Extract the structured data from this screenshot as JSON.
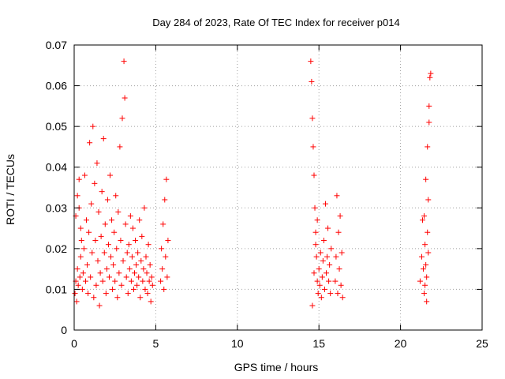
{
  "chart_data": {
    "type": "scatter",
    "title": "Day 284 of 2023, Rate Of TEC Index for receiver p014",
    "xlabel": "GPS time / hours",
    "ylabel": "ROTI / TECUs",
    "xlim": [
      0,
      25
    ],
    "ylim": [
      0,
      0.07
    ],
    "xticks": [
      0,
      5,
      10,
      15,
      20,
      25
    ],
    "xtick_labels": [
      "0",
      "5",
      "10",
      "15",
      "20",
      "25"
    ],
    "yticks": [
      0,
      0.01,
      0.02,
      0.03,
      0.04,
      0.05,
      0.06,
      0.07
    ],
    "ytick_labels": [
      "0",
      "0.01",
      "0.02",
      "0.03",
      "0.04",
      "0.05",
      "0.06",
      "0.07"
    ],
    "grid": true,
    "marker": "+",
    "color": "#ff0000",
    "series": [
      {
        "points": [
          [
            0.05,
            0.009
          ],
          [
            0.1,
            0.012
          ],
          [
            0.15,
            0.007
          ],
          [
            0.2,
            0.015
          ],
          [
            0.25,
            0.011
          ],
          [
            0.3,
            0.03
          ],
          [
            0.35,
            0.013
          ],
          [
            0.4,
            0.018
          ],
          [
            0.45,
            0.022
          ],
          [
            0.5,
            0.01
          ],
          [
            0.1,
            0.028
          ],
          [
            0.2,
            0.033
          ],
          [
            0.3,
            0.037
          ],
          [
            0.4,
            0.025
          ],
          [
            0.55,
            0.014
          ],
          [
            0.6,
            0.02
          ],
          [
            0.65,
            0.038
          ],
          [
            0.7,
            0.012
          ],
          [
            0.75,
            0.027
          ],
          [
            0.8,
            0.016
          ],
          [
            0.85,
            0.009
          ],
          [
            0.9,
            0.024
          ],
          [
            0.95,
            0.046
          ],
          [
            1.0,
            0.013
          ],
          [
            1.05,
            0.031
          ],
          [
            1.1,
            0.019
          ],
          [
            1.15,
            0.05
          ],
          [
            1.2,
            0.008
          ],
          [
            1.25,
            0.036
          ],
          [
            1.3,
            0.022
          ],
          [
            1.35,
            0.011
          ],
          [
            1.4,
            0.041
          ],
          [
            1.45,
            0.017
          ],
          [
            1.5,
            0.029
          ],
          [
            1.55,
            0.006
          ],
          [
            1.6,
            0.014
          ],
          [
            1.65,
            0.023
          ],
          [
            1.7,
            0.034
          ],
          [
            1.75,
            0.012
          ],
          [
            1.8,
            0.047
          ],
          [
            1.85,
            0.019
          ],
          [
            1.9,
            0.026
          ],
          [
            1.95,
            0.009
          ],
          [
            2.0,
            0.015
          ],
          [
            2.05,
            0.032
          ],
          [
            2.1,
            0.021
          ],
          [
            2.15,
            0.013
          ],
          [
            2.2,
            0.038
          ],
          [
            2.25,
            0.018
          ],
          [
            2.3,
            0.027
          ],
          [
            2.35,
            0.01
          ],
          [
            2.4,
            0.016
          ],
          [
            2.45,
            0.024
          ],
          [
            2.5,
            0.012
          ],
          [
            2.55,
            0.033
          ],
          [
            2.6,
            0.02
          ],
          [
            2.65,
            0.008
          ],
          [
            2.7,
            0.029
          ],
          [
            2.75,
            0.014
          ],
          [
            2.8,
            0.045
          ],
          [
            2.85,
            0.022
          ],
          [
            2.9,
            0.011
          ],
          [
            2.95,
            0.052
          ],
          [
            3.0,
            0.017
          ],
          [
            3.05,
            0.066
          ],
          [
            3.1,
            0.057
          ],
          [
            3.15,
            0.026
          ],
          [
            3.2,
            0.013
          ],
          [
            3.25,
            0.019
          ],
          [
            3.3,
            0.009
          ],
          [
            3.35,
            0.021
          ],
          [
            3.4,
            0.015
          ],
          [
            3.45,
            0.028
          ],
          [
            3.5,
            0.012
          ],
          [
            3.55,
            0.018
          ],
          [
            3.6,
            0.025
          ],
          [
            3.65,
            0.01
          ],
          [
            3.7,
            0.014
          ],
          [
            3.75,
            0.022
          ],
          [
            3.8,
            0.016
          ],
          [
            3.85,
            0.011
          ],
          [
            3.9,
            0.019
          ],
          [
            3.95,
            0.013
          ],
          [
            4.0,
            0.027
          ],
          [
            4.05,
            0.008
          ],
          [
            4.1,
            0.017
          ],
          [
            4.15,
            0.023
          ],
          [
            4.2,
            0.012
          ],
          [
            4.25,
            0.015
          ],
          [
            4.3,
            0.03
          ],
          [
            4.35,
            0.01
          ],
          [
            4.4,
            0.018
          ],
          [
            4.45,
            0.014
          ],
          [
            4.5,
            0.009
          ],
          [
            4.55,
            0.021
          ],
          [
            4.6,
            0.012
          ],
          [
            4.65,
            0.016
          ],
          [
            4.7,
            0.007
          ],
          [
            4.75,
            0.013
          ],
          [
            4.8,
            0.011
          ],
          [
            5.3,
            0.012
          ],
          [
            5.35,
            0.02
          ],
          [
            5.4,
            0.015
          ],
          [
            5.45,
            0.026
          ],
          [
            5.5,
            0.01
          ],
          [
            5.55,
            0.032
          ],
          [
            5.6,
            0.018
          ],
          [
            5.65,
            0.037
          ],
          [
            5.7,
            0.013
          ],
          [
            5.75,
            0.022
          ],
          [
            14.5,
            0.066
          ],
          [
            14.55,
            0.061
          ],
          [
            14.6,
            0.052
          ],
          [
            14.65,
            0.045
          ],
          [
            14.7,
            0.038
          ],
          [
            14.75,
            0.03
          ],
          [
            14.8,
            0.024
          ],
          [
            14.85,
            0.018
          ],
          [
            14.9,
            0.012
          ],
          [
            14.95,
            0.009
          ],
          [
            14.6,
            0.006
          ],
          [
            14.7,
            0.014
          ],
          [
            14.8,
            0.021
          ],
          [
            14.9,
            0.027
          ],
          [
            15.0,
            0.015
          ],
          [
            15.05,
            0.011
          ],
          [
            15.1,
            0.019
          ],
          [
            15.15,
            0.008
          ],
          [
            15.2,
            0.013
          ],
          [
            15.25,
            0.017
          ],
          [
            15.3,
            0.022
          ],
          [
            15.35,
            0.01
          ],
          [
            15.4,
            0.031
          ],
          [
            15.45,
            0.014
          ],
          [
            15.5,
            0.018
          ],
          [
            15.55,
            0.025
          ],
          [
            15.6,
            0.012
          ],
          [
            15.65,
            0.016
          ],
          [
            15.7,
            0.009
          ],
          [
            15.75,
            0.02
          ],
          [
            16.0,
            0.012
          ],
          [
            16.05,
            0.018
          ],
          [
            16.1,
            0.033
          ],
          [
            16.15,
            0.009
          ],
          [
            16.2,
            0.024
          ],
          [
            16.25,
            0.015
          ],
          [
            16.3,
            0.028
          ],
          [
            16.35,
            0.011
          ],
          [
            16.4,
            0.019
          ],
          [
            16.45,
            0.008
          ],
          [
            21.2,
            0.012
          ],
          [
            21.3,
            0.018
          ],
          [
            21.35,
            0.027
          ],
          [
            21.4,
            0.015
          ],
          [
            21.45,
            0.009
          ],
          [
            21.5,
            0.021
          ],
          [
            21.55,
            0.037
          ],
          [
            21.6,
            0.013
          ],
          [
            21.65,
            0.045
          ],
          [
            21.7,
            0.019
          ],
          [
            21.75,
            0.055
          ],
          [
            21.8,
            0.062
          ],
          [
            21.85,
            0.063
          ],
          [
            21.75,
            0.051
          ],
          [
            21.7,
            0.032
          ],
          [
            21.65,
            0.024
          ],
          [
            21.6,
            0.007
          ],
          [
            21.55,
            0.016
          ],
          [
            21.5,
            0.011
          ],
          [
            21.45,
            0.028
          ]
        ]
      }
    ]
  }
}
